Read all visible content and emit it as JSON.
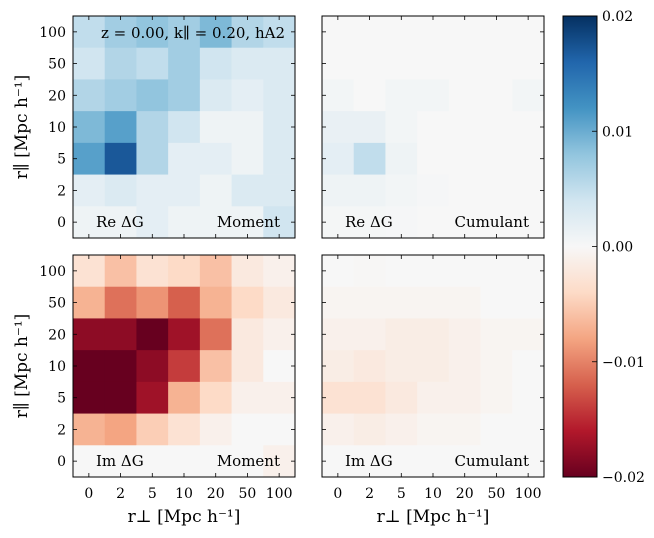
{
  "chart_data": [
    {
      "type": "heatmap",
      "panel_label": "Re ΔG",
      "method": "Moment",
      "annotation": "z = 0.00,  k∥ = 0.20, hA2",
      "ylabel": "r∥ [Mpc h⁻¹]",
      "x_ticks": [
        "0",
        "2",
        "5",
        "10",
        "20",
        "50",
        "100"
      ],
      "y_ticks": [
        "0",
        "2",
        "5",
        "10",
        "20",
        "50",
        "100"
      ],
      "rows_top_to_bottom": [
        [
          0.005,
          0.007,
          0.008,
          0.007,
          0.009,
          0.006,
          0.005
        ],
        [
          0.004,
          0.006,
          0.005,
          0.007,
          0.004,
          0.003,
          0.003
        ],
        [
          0.006,
          0.007,
          0.008,
          0.007,
          0.003,
          0.002,
          0.003
        ],
        [
          0.009,
          0.011,
          0.006,
          0.004,
          0.001,
          0.001,
          0.003
        ],
        [
          0.011,
          0.017,
          0.006,
          0.002,
          0.002,
          0.001,
          0.003
        ],
        [
          0.002,
          0.003,
          0.002,
          0.002,
          0.001,
          0.003,
          0.003
        ],
        [
          0.001,
          0.001,
          0.002,
          0.001,
          0.001,
          0.001,
          0.004
        ]
      ]
    },
    {
      "type": "heatmap",
      "panel_label": "Re ΔG",
      "method": "Cumulant",
      "x_ticks": [
        "0",
        "2",
        "5",
        "10",
        "20",
        "50",
        "100"
      ],
      "y_ticks": [
        "0",
        "2",
        "5",
        "10",
        "20",
        "50",
        "100"
      ],
      "rows_top_to_bottom": [
        [
          0.0,
          0.0,
          0.0,
          0.0,
          0.0,
          0.0,
          0.0
        ],
        [
          0.0,
          0.0,
          0.0,
          0.0,
          0.0,
          0.0,
          0.0
        ],
        [
          0.0005,
          0.0,
          0.0005,
          0.0005,
          0.0,
          0.0,
          0.0005
        ],
        [
          0.0015,
          0.0015,
          0.0005,
          0.0,
          0.0,
          0.0,
          0.0
        ],
        [
          0.002,
          0.005,
          0.001,
          0.0,
          0.0,
          0.0,
          0.0
        ],
        [
          0.001,
          0.001,
          0.0005,
          0.0002,
          0.0,
          0.0,
          0.0
        ],
        [
          0.0003,
          0.0003,
          0.0002,
          0.0,
          0.0,
          0.0,
          0.0
        ]
      ]
    },
    {
      "type": "heatmap",
      "panel_label": "Im ΔG",
      "method": "Moment",
      "ylabel": "r∥ [Mpc h⁻¹]",
      "xlabel": "r⊥ [Mpc h⁻¹]",
      "x_ticks": [
        "0",
        "2",
        "5",
        "10",
        "20",
        "50",
        "100"
      ],
      "y_ticks": [
        "0",
        "2",
        "5",
        "10",
        "20",
        "50",
        "100"
      ],
      "rows_top_to_bottom": [
        [
          -0.003,
          -0.006,
          -0.003,
          -0.004,
          -0.006,
          -0.002,
          -0.001
        ],
        [
          -0.007,
          -0.011,
          -0.009,
          -0.012,
          -0.007,
          -0.004,
          -0.002
        ],
        [
          -0.018,
          -0.018,
          -0.02,
          -0.017,
          -0.011,
          -0.002,
          -0.001
        ],
        [
          -0.02,
          -0.02,
          -0.018,
          -0.014,
          -0.006,
          -0.002,
          0.0
        ],
        [
          -0.02,
          -0.02,
          -0.017,
          -0.007,
          -0.004,
          -0.001,
          -0.001
        ],
        [
          -0.007,
          -0.008,
          -0.005,
          -0.003,
          -0.001,
          0.0,
          0.0
        ],
        [
          0.0,
          0.0,
          0.0,
          0.0,
          0.0,
          0.0,
          -0.001
        ]
      ]
    },
    {
      "type": "heatmap",
      "panel_label": "Im ΔG",
      "method": "Cumulant",
      "xlabel": "r⊥ [Mpc h⁻¹]",
      "x_ticks": [
        "0",
        "2",
        "5",
        "10",
        "20",
        "50",
        "100"
      ],
      "y_ticks": [
        "0",
        "2",
        "5",
        "10",
        "20",
        "50",
        "100"
      ],
      "rows_top_to_bottom": [
        [
          0.0,
          -0.0002,
          0.0,
          0.0,
          0.0,
          0.0,
          0.0
        ],
        [
          -0.0005,
          -0.0005,
          -0.0005,
          -0.0005,
          -0.0005,
          0.0,
          0.0
        ],
        [
          -0.001,
          -0.001,
          -0.0015,
          -0.0015,
          -0.001,
          -0.0005,
          -0.0005
        ],
        [
          -0.0015,
          -0.002,
          -0.0015,
          -0.0015,
          -0.001,
          -0.0005,
          0.0
        ],
        [
          -0.003,
          -0.003,
          -0.002,
          -0.001,
          -0.001,
          -0.0005,
          0.0
        ],
        [
          -0.001,
          -0.0015,
          -0.001,
          -0.0005,
          -0.0005,
          0.0,
          0.0
        ],
        [
          0.0,
          0.0,
          0.0,
          0.0,
          0.0,
          0.0,
          0.0
        ]
      ]
    }
  ],
  "colorbar": {
    "range": [
      -0.02,
      0.02
    ],
    "tick_values": [
      0.02,
      0.01,
      0.0,
      -0.01,
      -0.02
    ],
    "tick_labels": [
      "0.02",
      "0.01",
      "0.00",
      "−0.01",
      "−0.02"
    ],
    "colormap": "RdBu",
    "stops": [
      "#67001f",
      "#b2182b",
      "#d6604d",
      "#f4a582",
      "#fddbc7",
      "#f7f7f7",
      "#d1e5f0",
      "#92c5de",
      "#4393c3",
      "#2166ac",
      "#053061"
    ]
  }
}
